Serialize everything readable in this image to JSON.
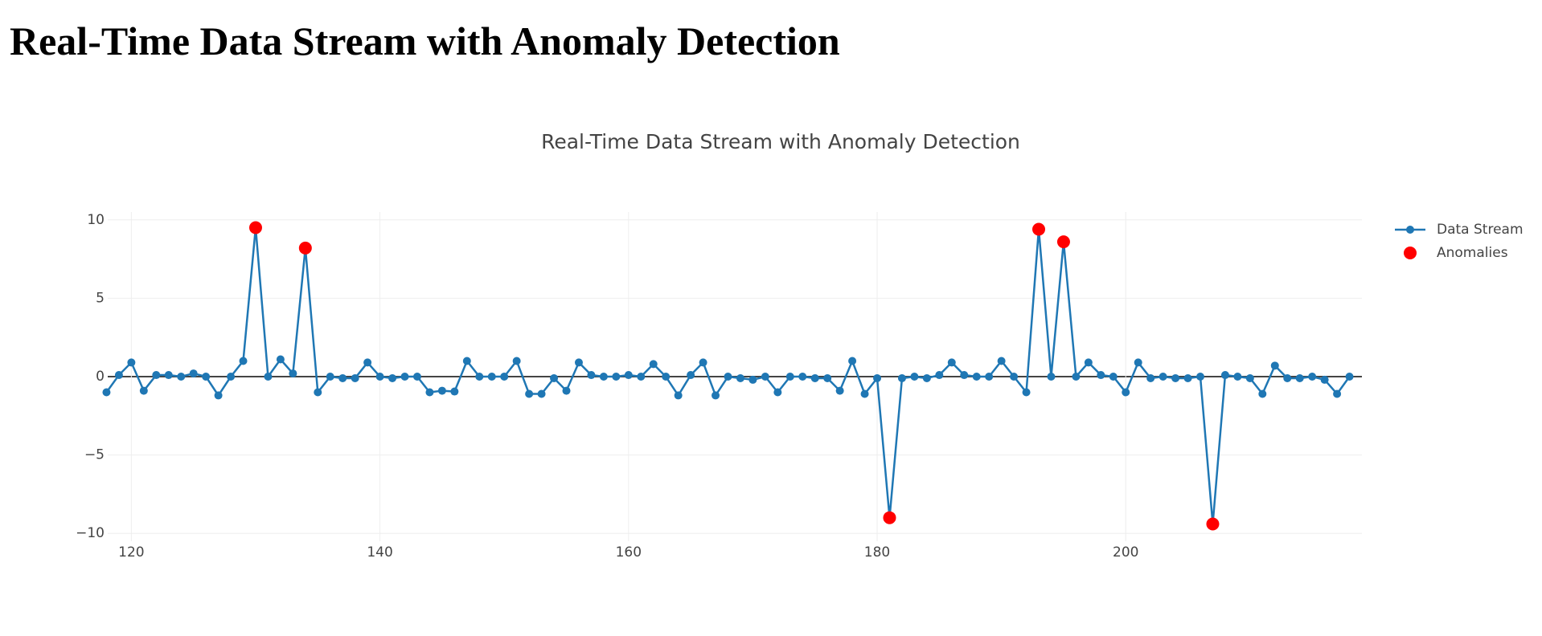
{
  "heading": "Real-Time Data Stream with Anomaly Detection",
  "chart_data": {
    "type": "line",
    "title": "Real-Time Data Stream with Anomaly Detection",
    "x": [
      118,
      119,
      120,
      121,
      122,
      123,
      124,
      125,
      126,
      127,
      128,
      129,
      130,
      131,
      132,
      133,
      134,
      135,
      136,
      137,
      138,
      139,
      140,
      141,
      142,
      143,
      144,
      145,
      146,
      147,
      148,
      149,
      150,
      151,
      152,
      153,
      154,
      155,
      156,
      157,
      158,
      159,
      160,
      161,
      162,
      163,
      164,
      165,
      166,
      167,
      168,
      169,
      170,
      171,
      172,
      173,
      174,
      175,
      176,
      177,
      178,
      179,
      180,
      181,
      182,
      183,
      184,
      185,
      186,
      187,
      188,
      189,
      190,
      191,
      192,
      193,
      194,
      195,
      196,
      197,
      198,
      199,
      200,
      201,
      202,
      203,
      204,
      205,
      206,
      207,
      208,
      209,
      210,
      211,
      212,
      213,
      214,
      215,
      216,
      217,
      218
    ],
    "series": [
      {
        "name": "Data Stream",
        "color": "#1f77b4",
        "values": [
          -1,
          0.1,
          0.9,
          -0.9,
          0.1,
          0.1,
          0,
          0.2,
          0,
          -1.2,
          0,
          1.0,
          9.5,
          0,
          1.1,
          0.2,
          8.2,
          -1.0,
          0,
          -0.1,
          -0.1,
          0.9,
          0,
          -0.1,
          0,
          0,
          -1.0,
          -0.9,
          -0.95,
          1.0,
          0,
          0,
          0,
          1.0,
          -1.1,
          -1.1,
          -0.1,
          -0.9,
          0.9,
          0.1,
          0,
          0,
          0.1,
          0,
          0.8,
          0,
          -1.2,
          0.1,
          0.9,
          -1.2,
          0,
          -0.1,
          -0.2,
          0,
          -1.0,
          0,
          0,
          -0.1,
          -0.1,
          -0.9,
          1.0,
          -1.1,
          -0.1,
          -9.0,
          -0.1,
          0,
          -0.1,
          0.1,
          0.9,
          0.1,
          0,
          0,
          1.0,
          0,
          -1.0,
          9.4,
          0,
          8.6,
          0,
          0.9,
          0.1,
          0,
          -1.0,
          0.9,
          -0.1,
          0,
          -0.1,
          -0.1,
          0,
          -9.4,
          0.1,
          0,
          -0.1,
          -1.1,
          0.7,
          -0.1,
          -0.1,
          0,
          -0.2,
          -1.1,
          0
        ]
      },
      {
        "name": "Anomalies",
        "color": "#ff0000",
        "x": [
          130,
          134,
          181,
          193,
          195,
          207
        ],
        "values": [
          9.5,
          8.2,
          -9.0,
          9.4,
          8.6,
          -9.4
        ]
      }
    ],
    "xlim": [
      118.1,
      219
    ],
    "xticks": [
      120,
      140,
      160,
      180,
      200
    ],
    "ylim": [
      -10.5,
      10.5
    ],
    "yticks": [
      10,
      5,
      0,
      {
        "value": -5,
        "label": "−5"
      },
      {
        "value": -10,
        "label": "−10"
      }
    ],
    "grid": true,
    "legend": "right"
  }
}
